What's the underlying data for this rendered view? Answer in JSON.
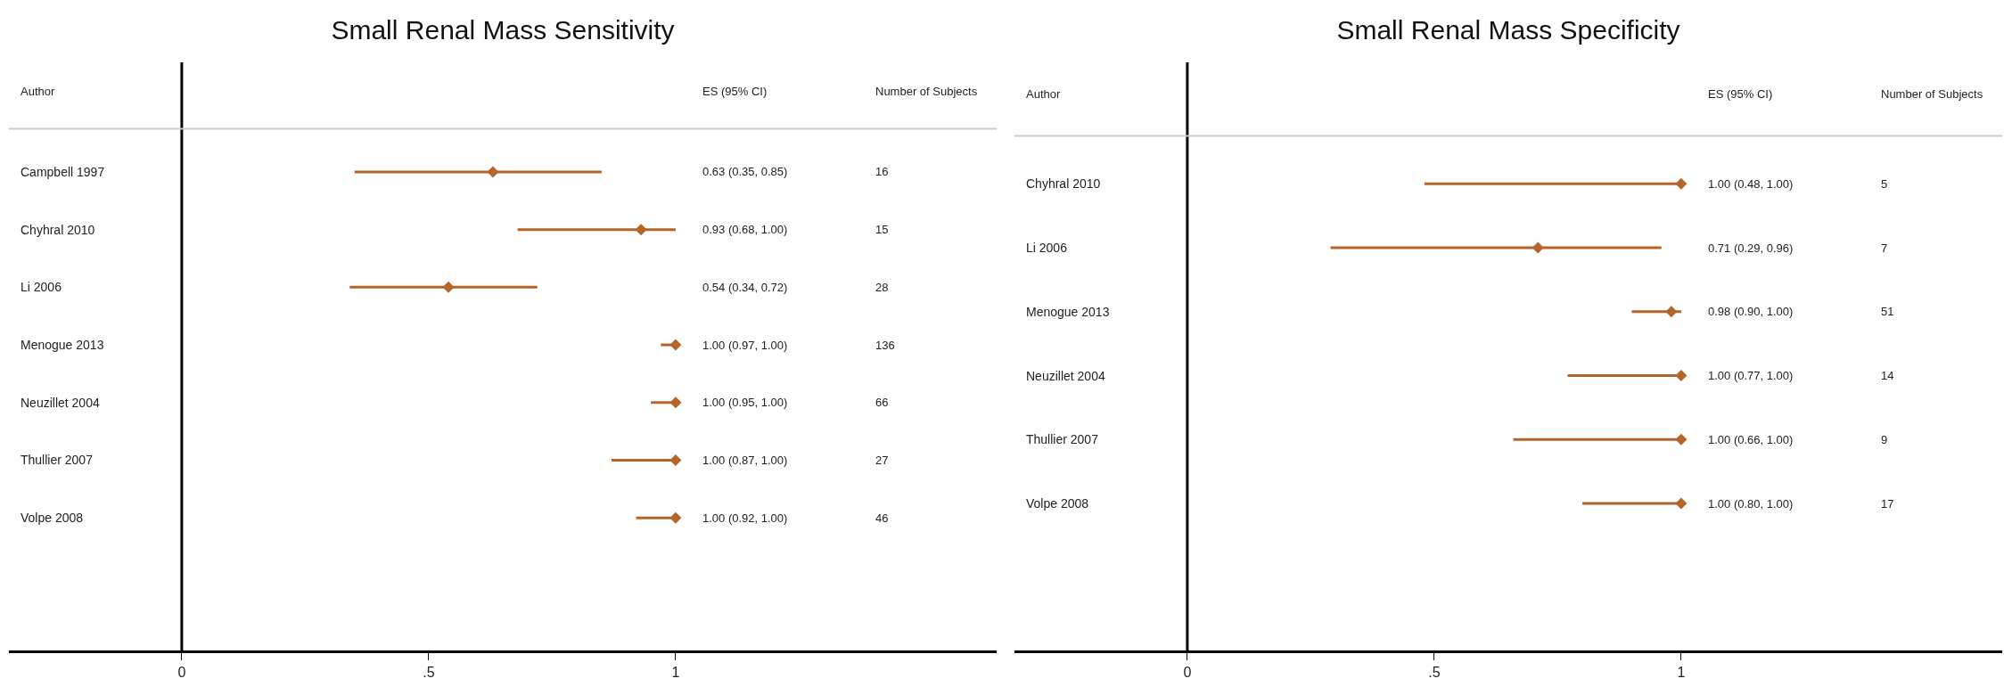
{
  "chart_data": [
    {
      "type": "scatter",
      "orientation": "horizontal",
      "title": "Small Renal Mass Sensitivity",
      "ylabel": "Author",
      "categories": [
        "Campbell 1997",
        "Chyhral 2010",
        "Li 2006",
        "Menogue 2013",
        "Neuzillet 2004",
        "Thullier 2007",
        "Volpe 2008"
      ],
      "series": [
        {
          "color": "#b5652a",
          "values": [
            0.63,
            0.93,
            0.54,
            1.0,
            1.0,
            1.0,
            1.0
          ],
          "errors": [
            [
              0.35,
              0.85
            ],
            [
              0.68,
              1.0
            ],
            [
              0.34,
              0.72
            ],
            [
              0.97,
              1.0
            ],
            [
              0.95,
              1.0
            ],
            [
              0.87,
              1.0
            ],
            [
              0.92,
              1.0
            ]
          ]
        }
      ],
      "marker": "diamond",
      "grid": false,
      "xlim": [
        -0.35,
        1.65
      ],
      "xticks": [
        {
          "value": 0,
          "label": "0"
        },
        {
          "value": 0.5,
          "label": ".5"
        },
        {
          "value": 1,
          "label": "1"
        }
      ],
      "ref_lines": [
        {
          "axis": "x",
          "value": 0,
          "color": "#000000"
        }
      ],
      "annotations": [
        "ES (95% CI)",
        "Number of Subjects",
        "0.63 (0.35, 0.85)",
        "0.93 (0.68, 1.00)",
        "0.54 (0.34, 0.72)",
        "1.00 (0.97, 1.00)",
        "1.00 (0.95, 1.00)",
        "1.00 (0.87, 1.00)",
        "1.00 (0.92, 1.00)",
        "16",
        "15",
        "28",
        "136",
        "66",
        "27",
        "46"
      ]
    },
    {
      "type": "scatter",
      "orientation": "horizontal",
      "title": "Small Renal Mass Specificity",
      "ylabel": "Author",
      "categories": [
        "Chyhral 2010",
        "Li 2006",
        "Menogue 2013",
        "Neuzillet 2004",
        "Thullier 2007",
        "Volpe 2008"
      ],
      "series": [
        {
          "color": "#b5652a",
          "values": [
            1.0,
            0.71,
            0.98,
            1.0,
            1.0,
            1.0
          ],
          "errors": [
            [
              0.48,
              1.0
            ],
            [
              0.29,
              0.96
            ],
            [
              0.9,
              1.0
            ],
            [
              0.77,
              1.0
            ],
            [
              0.66,
              1.0
            ],
            [
              0.8,
              1.0
            ]
          ]
        }
      ],
      "marker": "diamond",
      "grid": false,
      "xlim": [
        -0.35,
        1.65
      ],
      "xticks": [
        {
          "value": 0,
          "label": "0"
        },
        {
          "value": 0.5,
          "label": ".5"
        },
        {
          "value": 1,
          "label": "1"
        }
      ],
      "ref_lines": [
        {
          "axis": "x",
          "value": 0,
          "color": "#000000"
        }
      ],
      "annotations": [
        "ES (95% CI)",
        "Number of Subjects",
        "1.00 (0.48, 1.00)",
        "0.71 (0.29, 0.96)",
        "0.98 (0.90, 1.00)",
        "1.00 (0.77, 1.00)",
        "1.00 (0.66, 1.00)",
        "1.00 (0.80, 1.00)",
        "5",
        "7",
        "51",
        "14",
        "9",
        "17"
      ]
    }
  ]
}
